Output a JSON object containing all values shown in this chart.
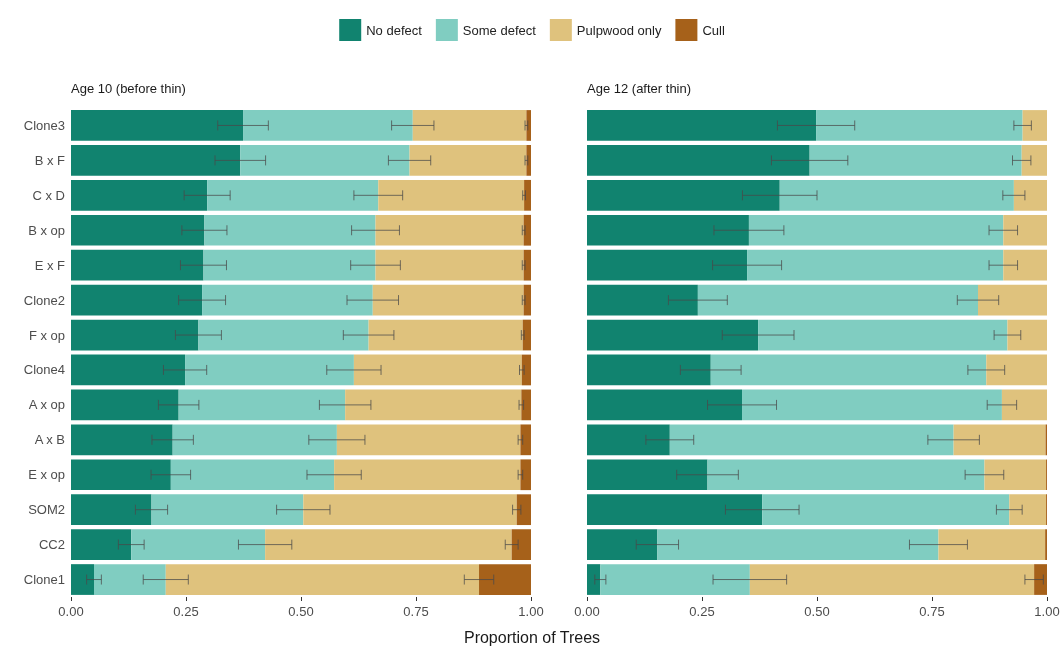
{
  "chart_data": [
    {
      "type": "bar",
      "orientation": "horizontal",
      "stacked": true,
      "title": "Age 10 (before thin)",
      "xlabel": "Proportion of Trees",
      "legend": "top",
      "grid": false,
      "categories": [
        "Clone3",
        "B x F",
        "C x D",
        "B x op",
        "E x F",
        "Clone2",
        "F x op",
        "Clone4",
        "A x op",
        "A x B",
        "E x op",
        "SOM2",
        "CC2",
        "Clone1"
      ],
      "xlim": [
        0,
        1
      ],
      "xticks": [
        {
          "value": 0,
          "label": "0.00"
        },
        {
          "value": 0.25,
          "label": "0.25"
        },
        {
          "value": 0.5,
          "label": "0.50"
        },
        {
          "value": 0.75,
          "label": "0.75"
        },
        {
          "value": 1,
          "label": "1.00"
        }
      ],
      "series": [
        {
          "name": "No defect",
          "color": "#11836f",
          "values": [
            0.374,
            0.368,
            0.296,
            0.29,
            0.288,
            0.285,
            0.277,
            0.248,
            0.234,
            0.221,
            0.217,
            0.175,
            0.131,
            0.05
          ],
          "errors": [
            0.055,
            0.055,
            0.05,
            0.049,
            0.05,
            0.051,
            0.05,
            0.047,
            0.044,
            0.045,
            0.043,
            0.035,
            0.028,
            0.016
          ]
        },
        {
          "name": "Some defect",
          "color": "#80cdc1",
          "values": [
            0.369,
            0.368,
            0.372,
            0.372,
            0.374,
            0.371,
            0.37,
            0.367,
            0.362,
            0.357,
            0.355,
            0.33,
            0.291,
            0.156
          ],
          "errors": [
            0.046,
            0.046,
            0.053,
            0.052,
            0.054,
            0.056,
            0.055,
            0.059,
            0.056,
            0.061,
            0.059,
            0.058,
            0.058,
            0.049
          ]
        },
        {
          "name": "Pulpwood only",
          "color": "#dfc27d",
          "values": [
            0.247,
            0.254,
            0.317,
            0.322,
            0.322,
            0.328,
            0.335,
            0.365,
            0.383,
            0.399,
            0.405,
            0.464,
            0.536,
            0.681
          ],
          "errors": [
            0.003,
            0.003,
            0.003,
            0.003,
            0.003,
            0.003,
            0.003,
            0.005,
            0.005,
            0.005,
            0.005,
            0.009,
            0.014,
            0.032
          ]
        },
        {
          "name": "Cull",
          "color": "#a6611a",
          "values": [
            0.01,
            0.01,
            0.015,
            0.016,
            0.016,
            0.016,
            0.018,
            0.02,
            0.021,
            0.023,
            0.023,
            0.031,
            0.042,
            0.113
          ]
        }
      ]
    },
    {
      "type": "bar",
      "orientation": "horizontal",
      "stacked": true,
      "title": "Age 12 (after thin)",
      "legend": false,
      "grid": false,
      "tick_labels": "x",
      "categories": [
        null,
        null,
        null,
        null,
        null,
        null,
        null,
        null,
        null,
        null,
        null,
        null,
        null,
        null
      ],
      "xlim": [
        0,
        1
      ],
      "xticks": [
        {
          "value": 0,
          "label": "0.00"
        },
        {
          "value": 0.25,
          "label": "0.25"
        },
        {
          "value": 0.5,
          "label": "0.50"
        },
        {
          "value": 0.75,
          "label": "0.75"
        },
        {
          "value": 1,
          "label": "1.00"
        }
      ],
      "series": [
        {
          "color": "#11836f",
          "values": [
            0.498,
            0.484,
            0.419,
            0.352,
            0.348,
            0.241,
            0.372,
            0.269,
            0.337,
            0.18,
            0.262,
            0.381,
            0.153,
            0.029
          ],
          "errors": [
            0.084,
            0.083,
            0.081,
            0.076,
            0.075,
            0.064,
            0.078,
            0.066,
            0.075,
            0.052,
            0.067,
            0.08,
            0.046,
            0.012
          ]
        },
        {
          "color": "#80cdc1",
          "values": [
            0.449,
            0.461,
            0.509,
            0.553,
            0.557,
            0.609,
            0.542,
            0.599,
            0.565,
            0.617,
            0.602,
            0.537,
            0.611,
            0.325
          ],
          "errors": [
            0.019,
            0.02,
            0.024,
            0.031,
            0.031,
            0.045,
            0.029,
            0.04,
            0.032,
            0.056,
            0.042,
            0.028,
            0.063,
            0.08
          ]
        },
        {
          "color": "#dfc27d",
          "values": [
            0.053,
            0.055,
            0.072,
            0.095,
            0.095,
            0.15,
            0.086,
            0.132,
            0.098,
            0.2,
            0.134,
            0.08,
            0.232,
            0.618
          ],
          "errors": [
            null,
            null,
            null,
            null,
            null,
            null,
            null,
            null,
            null,
            null,
            null,
            null,
            null,
            0.02
          ]
        },
        {
          "color": "#a6611a",
          "values": [
            0,
            0,
            0,
            0,
            0,
            0,
            0,
            0,
            0,
            0.003,
            0.002,
            0.002,
            0.004,
            0.028
          ]
        }
      ]
    }
  ]
}
